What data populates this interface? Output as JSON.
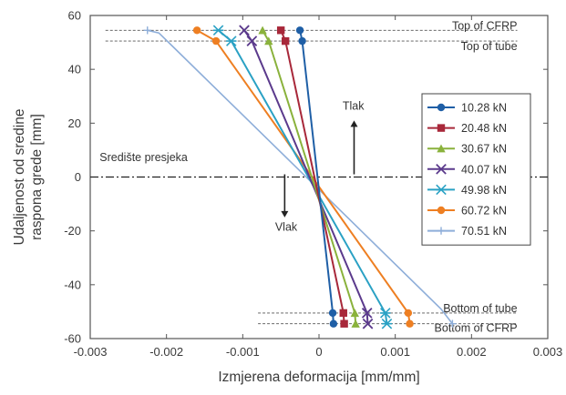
{
  "chart_data": {
    "type": "line",
    "xlabel": "Izmjerena deformacija [mm/mm]",
    "ylabel_lines": [
      "Udaljenost od sredine",
      "raspona grede [mm]"
    ],
    "xlim": [
      -0.003,
      0.003
    ],
    "ylim": [
      -60,
      60
    ],
    "x_ticks": [
      -0.003,
      -0.002,
      -0.001,
      0,
      0.001,
      0.002,
      0.003
    ],
    "x_tick_labels": [
      "-0.003",
      "-0.002",
      "-0.001",
      "0",
      "0.001",
      "0.002",
      "0.003"
    ],
    "y_ticks": [
      60,
      40,
      20,
      0,
      -20,
      -40,
      -60
    ],
    "y_tick_labels": [
      "60",
      "40",
      "20",
      "0",
      "-20",
      "-40",
      "-60"
    ],
    "grid": false,
    "legend_position": "right",
    "reference_lines": [
      {
        "label": "Top of CFRP",
        "y": 54.5,
        "x_range": [
          -0.0028,
          0.0026
        ]
      },
      {
        "label": "Top of tube",
        "y": 50.5,
        "x_range": [
          -0.0028,
          0.0026
        ]
      },
      {
        "label": "Bottom of tube",
        "y": -50.5,
        "x_range": [
          -0.0008,
          0.0026
        ]
      },
      {
        "label": "Bottom of CFRP",
        "y": -54.5,
        "x_range": [
          -0.0008,
          0.0026
        ]
      },
      {
        "label": "Središte presjeka",
        "y": 0,
        "x_range": [
          -0.003,
          0.003
        ]
      }
    ],
    "annotations": [
      {
        "text": "Tlak",
        "x": 0.00045,
        "y": 25
      },
      {
        "text": "Vlak",
        "x": -0.00043,
        "y": -20
      },
      {
        "text": "Središte presjeka",
        "x": -0.0023,
        "y": 6
      }
    ],
    "arrows": [
      {
        "x": 0.00046,
        "y_from": 1,
        "y_to": 21
      },
      {
        "x": -0.00045,
        "y_from": 1,
        "y_to": -15
      }
    ],
    "series": [
      {
        "name": "10.28 kN",
        "color": "#1f5fa6",
        "marker": "circle",
        "points": [
          [
            -0.00025,
            54.5
          ],
          [
            -0.00022,
            50.5
          ],
          [
            0.00018,
            -50.5
          ],
          [
            0.00019,
            -54.5
          ]
        ]
      },
      {
        "name": "20.48 kN",
        "color": "#a8283a",
        "marker": "square",
        "points": [
          [
            -0.0005,
            54.5
          ],
          [
            -0.00044,
            50.5
          ],
          [
            0.00032,
            -50.5
          ],
          [
            0.00033,
            -54.5
          ]
        ]
      },
      {
        "name": "30.67 kN",
        "color": "#8ab23c",
        "marker": "triangle",
        "points": [
          [
            -0.00074,
            54.5
          ],
          [
            -0.00066,
            50.5
          ],
          [
            0.00047,
            -50.5
          ],
          [
            0.00048,
            -54.5
          ]
        ]
      },
      {
        "name": "40.07 kN",
        "color": "#5b3a8c",
        "marker": "x",
        "points": [
          [
            -0.00098,
            54.5
          ],
          [
            -0.00088,
            50.5
          ],
          [
            0.00063,
            -50.5
          ],
          [
            0.00064,
            -54.5
          ]
        ]
      },
      {
        "name": "49.98 kN",
        "color": "#2aa1c4",
        "marker": "star",
        "points": [
          [
            -0.00132,
            54.5
          ],
          [
            -0.00115,
            50.5
          ],
          [
            0.00087,
            -50.5
          ],
          [
            0.00089,
            -54.5
          ]
        ]
      },
      {
        "name": "60.72 kN",
        "color": "#ee7f22",
        "marker": "circle",
        "points": [
          [
            -0.0016,
            54.5
          ],
          [
            -0.00135,
            50.5
          ],
          [
            0.00117,
            -50.5
          ],
          [
            0.00119,
            -54.5
          ]
        ]
      },
      {
        "name": "70.51 kN",
        "color": "#8eaed9",
        "marker": "plus",
        "points": [
          [
            -0.00225,
            54.5
          ],
          [
            -0.0021,
            53.5
          ],
          [
            -0.0019,
            48
          ],
          [
            0.0016,
            -49
          ],
          [
            0.00175,
            -54.5
          ]
        ]
      }
    ]
  }
}
